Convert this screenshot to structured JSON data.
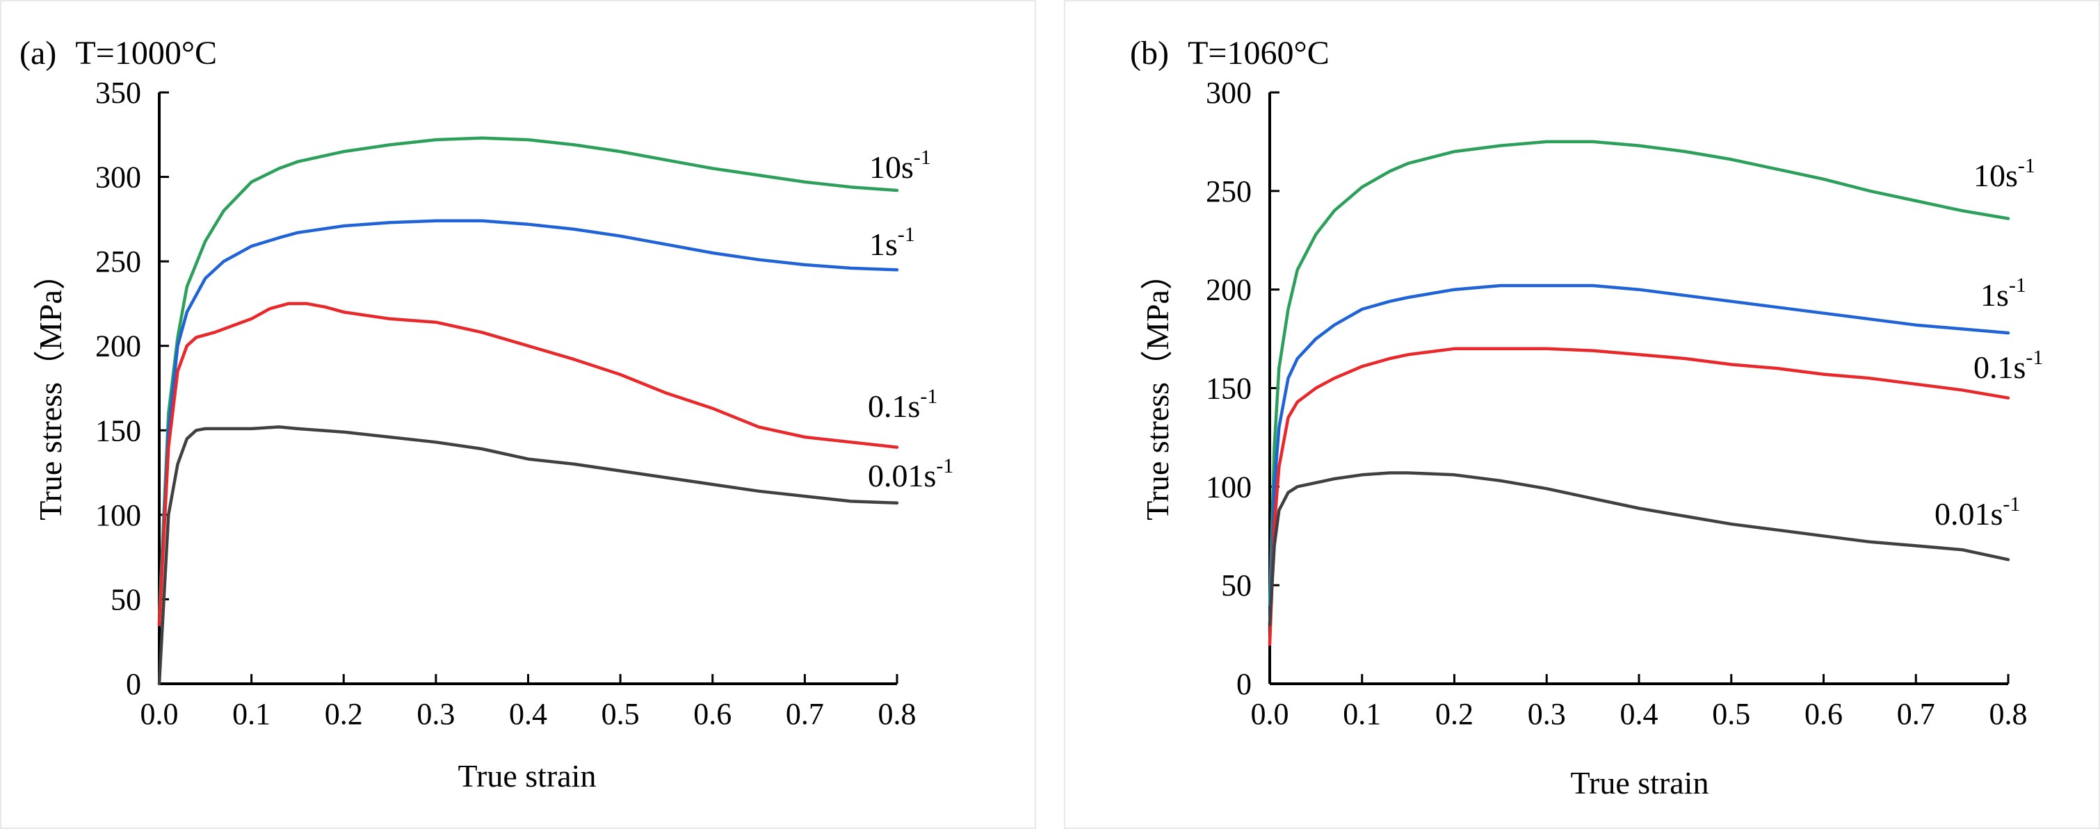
{
  "chart_data": [
    {
      "type": "line",
      "panel": "(a)",
      "title": "T=1000°C",
      "xlabel": "True strain",
      "ylabel": "True stress（MPa）",
      "xlim": [
        0,
        0.8
      ],
      "ylim": [
        0,
        350
      ],
      "xticks": [
        "0.0",
        "0.1",
        "0.2",
        "0.3",
        "0.4",
        "0.5",
        "0.6",
        "0.7",
        "0.8"
      ],
      "yticks": [
        "0",
        "50",
        "100",
        "150",
        "200",
        "250",
        "300",
        "350"
      ],
      "series": [
        {
          "name": "10s-1",
          "label_base": "10s",
          "label_exp": "-1",
          "color": "#2ca05a",
          "x": [
            0,
            0.01,
            0.02,
            0.03,
            0.05,
            0.07,
            0.1,
            0.13,
            0.15,
            0.2,
            0.25,
            0.3,
            0.35,
            0.4,
            0.45,
            0.5,
            0.55,
            0.6,
            0.65,
            0.7,
            0.75,
            0.8
          ],
          "y": [
            40,
            160,
            205,
            235,
            262,
            280,
            297,
            305,
            309,
            315,
            319,
            322,
            323,
            322,
            319,
            315,
            310,
            305,
            301,
            297,
            294,
            292
          ]
        },
        {
          "name": "1s-1",
          "label_base": "1s",
          "label_exp": "-1",
          "color": "#1f63d6",
          "x": [
            0,
            0.01,
            0.02,
            0.03,
            0.05,
            0.07,
            0.1,
            0.13,
            0.15,
            0.2,
            0.25,
            0.3,
            0.35,
            0.4,
            0.45,
            0.5,
            0.55,
            0.6,
            0.65,
            0.7,
            0.75,
            0.8
          ],
          "y": [
            35,
            150,
            200,
            220,
            240,
            250,
            259,
            264,
            267,
            271,
            273,
            274,
            274,
            272,
            269,
            265,
            260,
            255,
            251,
            248,
            246,
            245
          ]
        },
        {
          "name": "0.1s-1",
          "label_base": "0.1s",
          "label_exp": "-1",
          "color": "#e8282a",
          "x": [
            0,
            0.01,
            0.02,
            0.03,
            0.04,
            0.06,
            0.08,
            0.1,
            0.12,
            0.14,
            0.16,
            0.18,
            0.2,
            0.25,
            0.3,
            0.35,
            0.4,
            0.45,
            0.5,
            0.55,
            0.6,
            0.65,
            0.7,
            0.75,
            0.8
          ],
          "y": [
            35,
            140,
            185,
            200,
            205,
            208,
            212,
            216,
            222,
            225,
            225,
            223,
            220,
            216,
            214,
            208,
            200,
            192,
            183,
            172,
            163,
            152,
            146,
            143,
            140
          ]
        },
        {
          "name": "0.01s-1",
          "label_base": "0.01s",
          "label_exp": "-1",
          "color": "#404040",
          "x": [
            0,
            0.01,
            0.02,
            0.03,
            0.04,
            0.05,
            0.07,
            0.1,
            0.13,
            0.15,
            0.2,
            0.25,
            0.3,
            0.35,
            0.4,
            0.45,
            0.5,
            0.55,
            0.6,
            0.65,
            0.7,
            0.75,
            0.8
          ],
          "y": [
            0,
            100,
            130,
            145,
            150,
            151,
            151,
            151,
            152,
            151,
            149,
            146,
            143,
            139,
            133,
            130,
            126,
            122,
            118,
            114,
            111,
            108,
            107
          ]
        }
      ]
    },
    {
      "type": "line",
      "panel": "(b)",
      "title": "T=1060°C",
      "xlabel": "True strain",
      "ylabel": "True stress（MPa）",
      "xlim": [
        0,
        0.8
      ],
      "ylim": [
        0,
        300
      ],
      "xticks": [
        "0.0",
        "0.1",
        "0.2",
        "0.3",
        "0.4",
        "0.5",
        "0.6",
        "0.7",
        "0.8"
      ],
      "yticks": [
        "0",
        "50",
        "100",
        "150",
        "200",
        "250",
        "300"
      ],
      "series": [
        {
          "name": "10s-1",
          "label_base": "10s",
          "label_exp": "-1",
          "color": "#2ca05a",
          "x": [
            0,
            0.005,
            0.01,
            0.02,
            0.03,
            0.05,
            0.07,
            0.1,
            0.13,
            0.15,
            0.2,
            0.25,
            0.3,
            0.35,
            0.4,
            0.45,
            0.5,
            0.55,
            0.6,
            0.65,
            0.7,
            0.75,
            0.8
          ],
          "y": [
            40,
            120,
            160,
            190,
            210,
            228,
            240,
            252,
            260,
            264,
            270,
            273,
            275,
            275,
            273,
            270,
            266,
            261,
            256,
            250,
            245,
            240,
            236
          ]
        },
        {
          "name": "1s-1",
          "label_base": "1s",
          "label_exp": "-1",
          "color": "#1f63d6",
          "x": [
            0,
            0.005,
            0.01,
            0.02,
            0.03,
            0.05,
            0.07,
            0.1,
            0.13,
            0.15,
            0.2,
            0.25,
            0.3,
            0.35,
            0.4,
            0.45,
            0.5,
            0.55,
            0.6,
            0.65,
            0.7,
            0.75,
            0.8
          ],
          "y": [
            30,
            100,
            130,
            155,
            165,
            175,
            182,
            190,
            194,
            196,
            200,
            202,
            202,
            202,
            200,
            197,
            194,
            191,
            188,
            185,
            182,
            180,
            178
          ]
        },
        {
          "name": "0.1s-1",
          "label_base": "0.1s",
          "label_exp": "-1",
          "color": "#e8282a",
          "x": [
            0,
            0.005,
            0.01,
            0.02,
            0.03,
            0.05,
            0.07,
            0.1,
            0.13,
            0.15,
            0.2,
            0.25,
            0.3,
            0.35,
            0.4,
            0.45,
            0.5,
            0.55,
            0.6,
            0.65,
            0.7,
            0.75,
            0.8
          ],
          "y": [
            20,
            80,
            110,
            135,
            143,
            150,
            155,
            161,
            165,
            167,
            170,
            170,
            170,
            169,
            167,
            165,
            162,
            160,
            157,
            155,
            152,
            149,
            145
          ]
        },
        {
          "name": "0.01s-1",
          "label_base": "0.01s",
          "label_exp": "-1",
          "color": "#404040",
          "x": [
            0,
            0.005,
            0.01,
            0.02,
            0.03,
            0.05,
            0.07,
            0.1,
            0.13,
            0.15,
            0.2,
            0.25,
            0.3,
            0.35,
            0.4,
            0.45,
            0.5,
            0.55,
            0.6,
            0.65,
            0.7,
            0.75,
            0.8
          ],
          "y": [
            30,
            70,
            88,
            97,
            100,
            102,
            104,
            106,
            107,
            107,
            106,
            103,
            99,
            94,
            89,
            85,
            81,
            78,
            75,
            72,
            70,
            68,
            63
          ]
        }
      ]
    }
  ]
}
